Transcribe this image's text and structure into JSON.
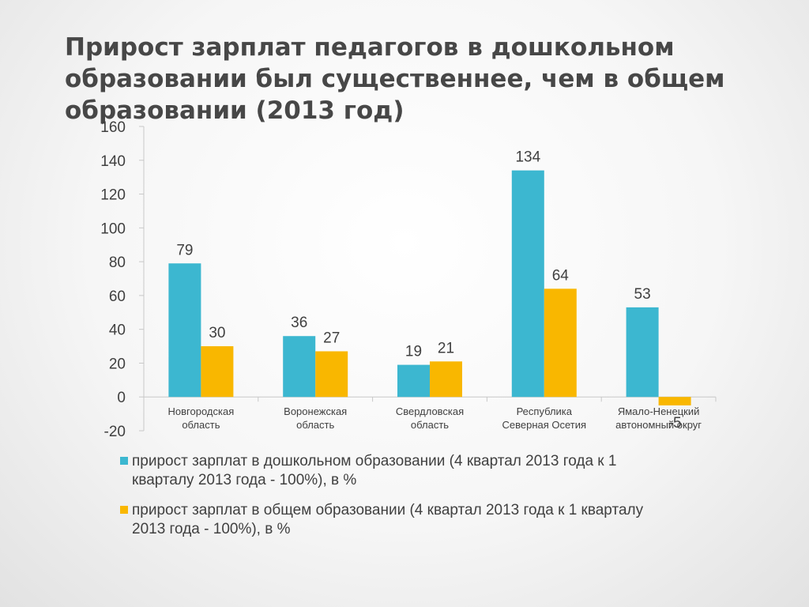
{
  "title": "Прирост зарплат педагогов в дошкольном образовании был существеннее, чем в общем образовании (2013 год)",
  "chart_data": {
    "type": "bar",
    "categories": [
      [
        "Новгородская",
        "область"
      ],
      [
        "Воронежская",
        "область"
      ],
      [
        "Свердловская",
        "область"
      ],
      [
        "Республика",
        "Северная Осетия"
      ],
      [
        "Ямало-Ненецкий",
        "автономный округ"
      ]
    ],
    "series": [
      {
        "name": "прирост зарплат в дошкольном образовании (4 квартал 2013 года к 1 кварталу 2013 года - 100%), в %",
        "name_lines": [
          "прирост зарплат в дошкольном образовании (4 квартал 2013 года к 1",
          "кварталу 2013 года - 100%), в %"
        ],
        "values": [
          79,
          36,
          19,
          134,
          53
        ],
        "color": "#3CB7D0"
      },
      {
        "name": "прирост зарплат в общем образовании (4 квартал 2013 года к 1 кварталу 2013 года - 100%), в %",
        "name_lines": [
          "прирост зарплат в общем образовании (4 квартал 2013 года к 1 кварталу",
          "2013 года - 100%), в %"
        ],
        "values": [
          30,
          27,
          21,
          64,
          -5
        ],
        "color": "#F9B700"
      }
    ],
    "ylim": [
      -20,
      160
    ],
    "yticks": [
      -20,
      0,
      20,
      40,
      60,
      80,
      100,
      120,
      140,
      160
    ],
    "legend_position": "bottom",
    "grid": false
  }
}
